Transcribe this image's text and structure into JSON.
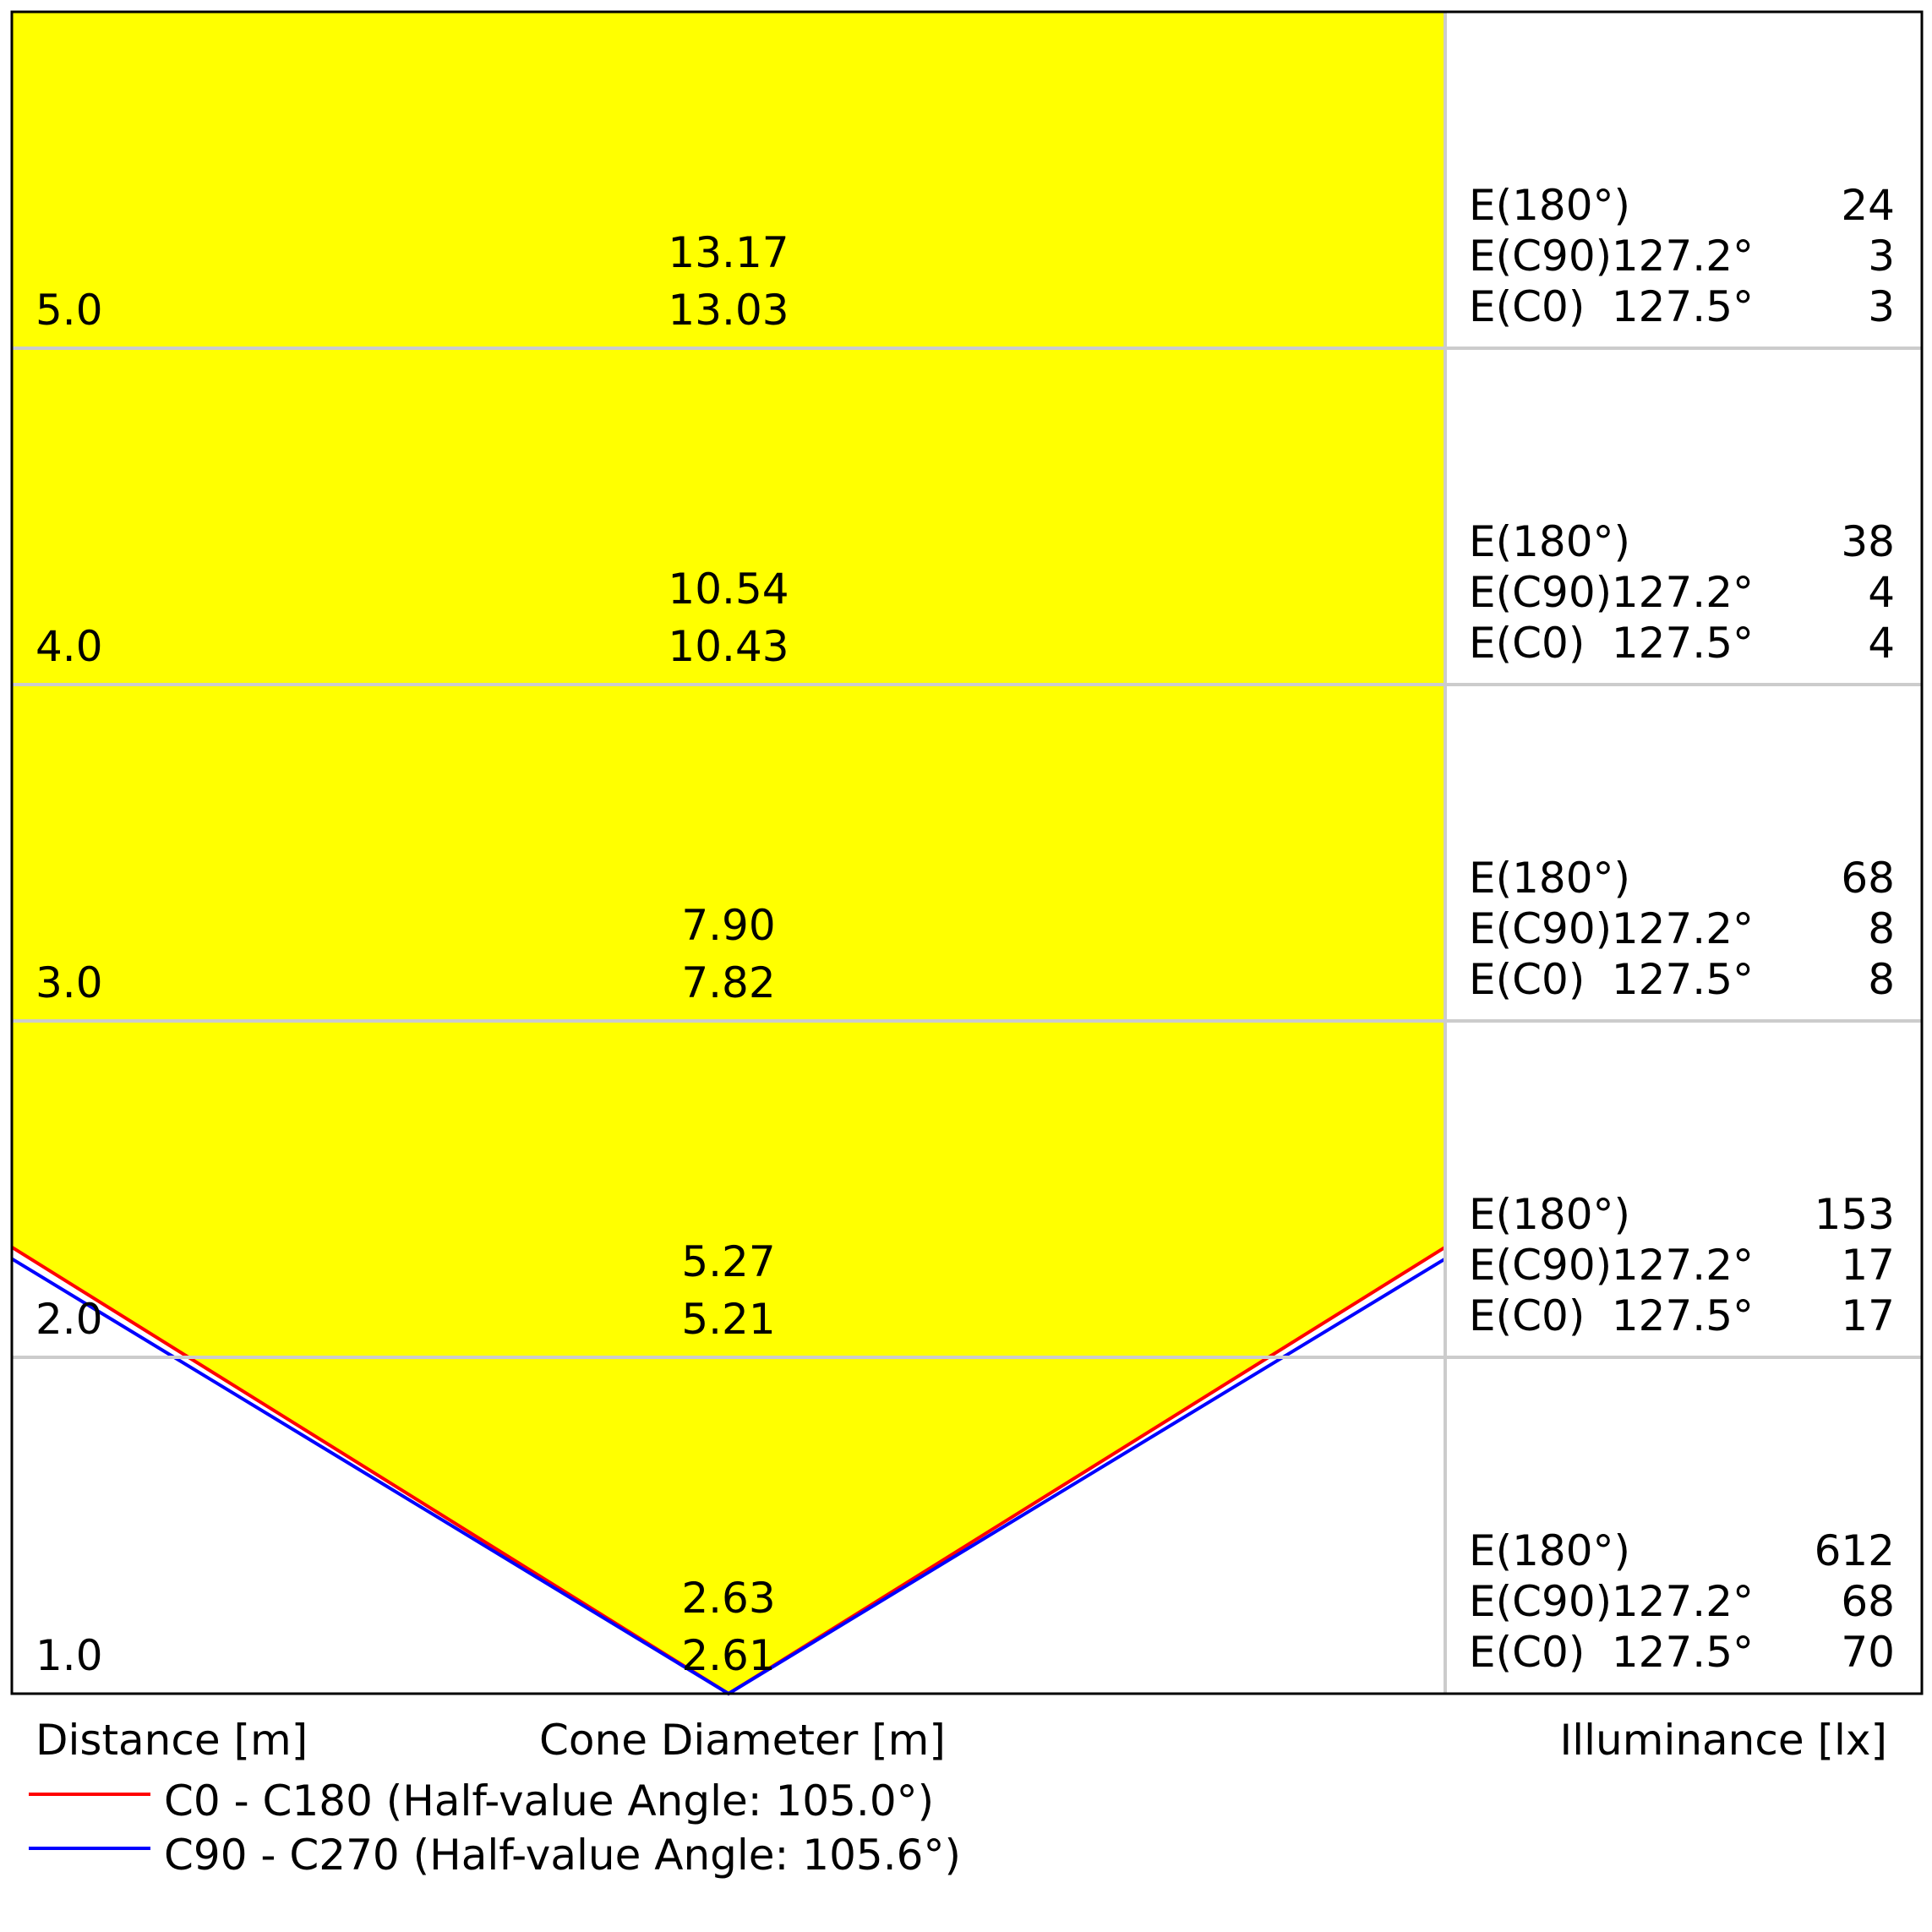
{
  "chart_data": {
    "type": "cone-diagram",
    "colors": {
      "cone_fill": "#ffff00",
      "c0_line": "#ff0000",
      "c90_line": "#0000ff",
      "grid": "#cccccc",
      "frame": "#000000"
    },
    "axis_labels": {
      "distance": "Distance [m]",
      "diameter": "Cone Diameter [m]",
      "illuminance": "Illuminance [lx]"
    },
    "half_value_angles": {
      "c0_c180": 105.0,
      "c90_c270": 105.6
    },
    "legend": [
      {
        "label": "C0 - C180 (Half-value Angle: 105.0°)",
        "color": "#ff0000"
      },
      {
        "label": "C90 - C270 (Half-value Angle: 105.6°)",
        "color": "#0000ff"
      }
    ],
    "rows": [
      {
        "distance": "5.0",
        "d1": "13.17",
        "d2": "13.03",
        "e180_label": "E(180°)",
        "e180": "24",
        "ec90_label": "E(C90)",
        "ec90_angle": "127.2°",
        "ec90": "3",
        "ec0_label": "E(C0)",
        "ec0_angle": "127.5°",
        "ec0": "3"
      },
      {
        "distance": "4.0",
        "d1": "10.54",
        "d2": "10.43",
        "e180_label": "E(180°)",
        "e180": "38",
        "ec90_label": "E(C90)",
        "ec90_angle": "127.2°",
        "ec90": "4",
        "ec0_label": "E(C0)",
        "ec0_angle": "127.5°",
        "ec0": "4"
      },
      {
        "distance": "3.0",
        "d1": "7.90",
        "d2": "7.82",
        "e180_label": "E(180°)",
        "e180": "68",
        "ec90_label": "E(C90)",
        "ec90_angle": "127.2°",
        "ec90": "8",
        "ec0_label": "E(C0)",
        "ec0_angle": "127.5°",
        "ec0": "8"
      },
      {
        "distance": "2.0",
        "d1": "5.27",
        "d2": "5.21",
        "e180_label": "E(180°)",
        "e180": "153",
        "ec90_label": "E(C90)",
        "ec90_angle": "127.2°",
        "ec90": "17",
        "ec0_label": "E(C0)",
        "ec0_angle": "127.5°",
        "ec0": "17"
      },
      {
        "distance": "1.0",
        "d1": "2.63",
        "d2": "2.61",
        "e180_label": "E(180°)",
        "e180": "612",
        "ec90_label": "E(C90)",
        "ec90_angle": "127.2°",
        "ec90": "68",
        "ec0_label": "E(C0)",
        "ec0_angle": "127.5°",
        "ec0": "70"
      }
    ]
  }
}
